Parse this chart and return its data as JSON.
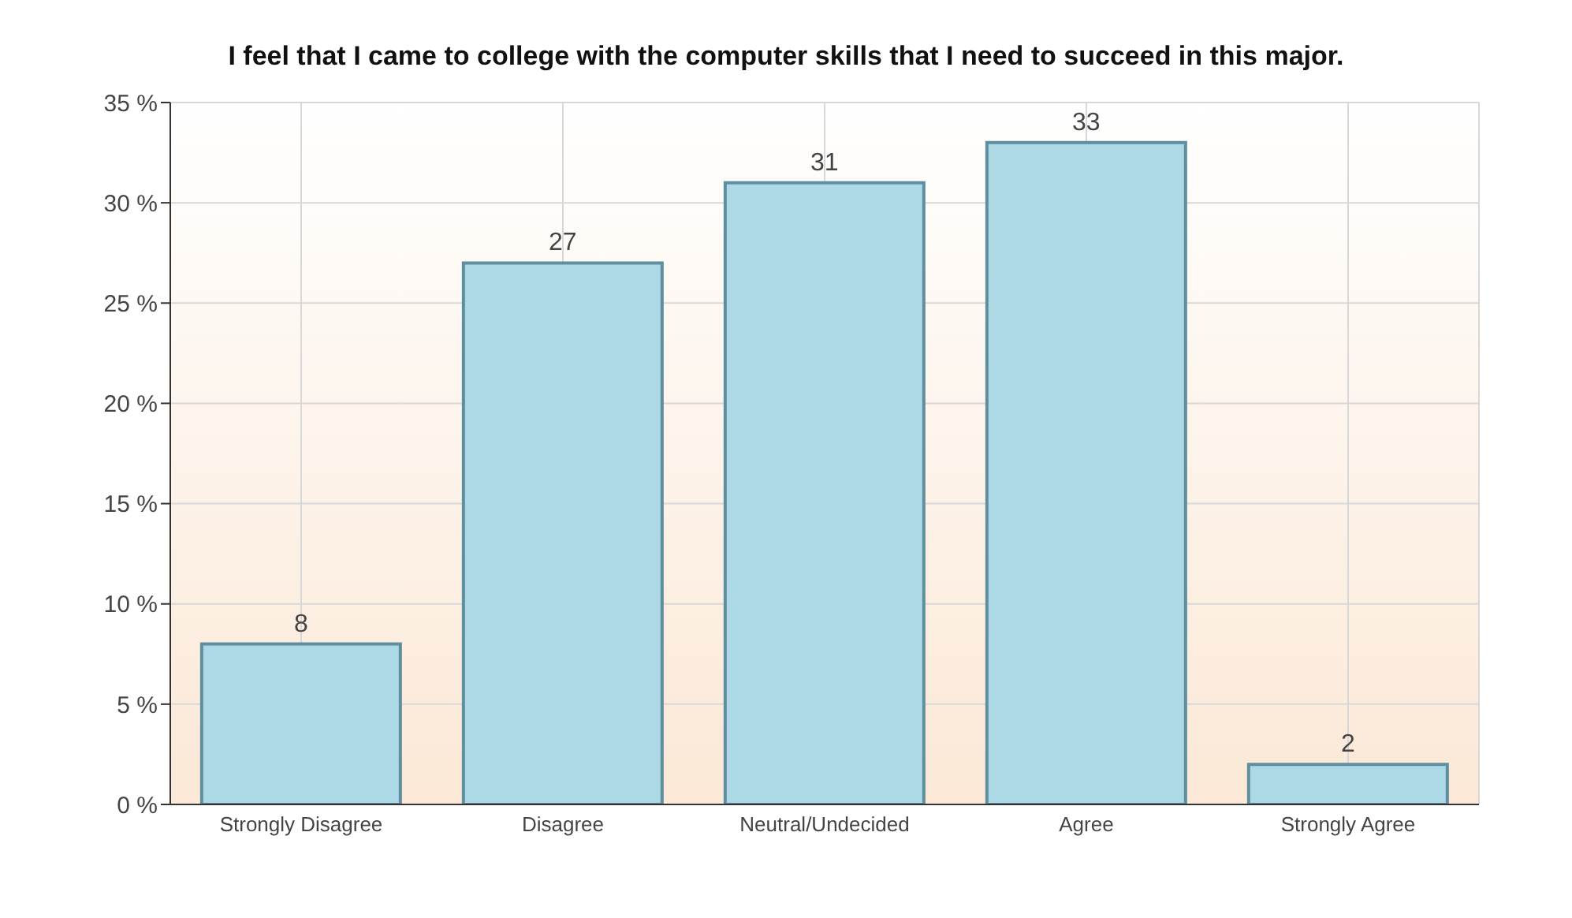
{
  "chart_data": {
    "type": "bar",
    "title": "I feel that I came to college with the computer skills that I need to succeed in this major.",
    "categories": [
      "Strongly Disagree",
      "Disagree",
      "Neutral/Undecided",
      "Agree",
      "Strongly Agree"
    ],
    "values": [
      8,
      27,
      31,
      33,
      2
    ],
    "color": "#add8e6",
    "ylim": [
      0,
      35
    ],
    "yticks": [
      {
        "value": 0,
        "label": "0 %"
      },
      {
        "value": 5,
        "label": "5 %"
      },
      {
        "value": 10,
        "label": "10 %"
      },
      {
        "value": 15,
        "label": "15 %"
      },
      {
        "value": 20,
        "label": "20 %"
      },
      {
        "value": 25,
        "label": "25 %"
      },
      {
        "value": 30,
        "label": "30 %"
      },
      {
        "value": 35,
        "label": "35 %"
      }
    ],
    "grid": true,
    "data_labels": true
  }
}
